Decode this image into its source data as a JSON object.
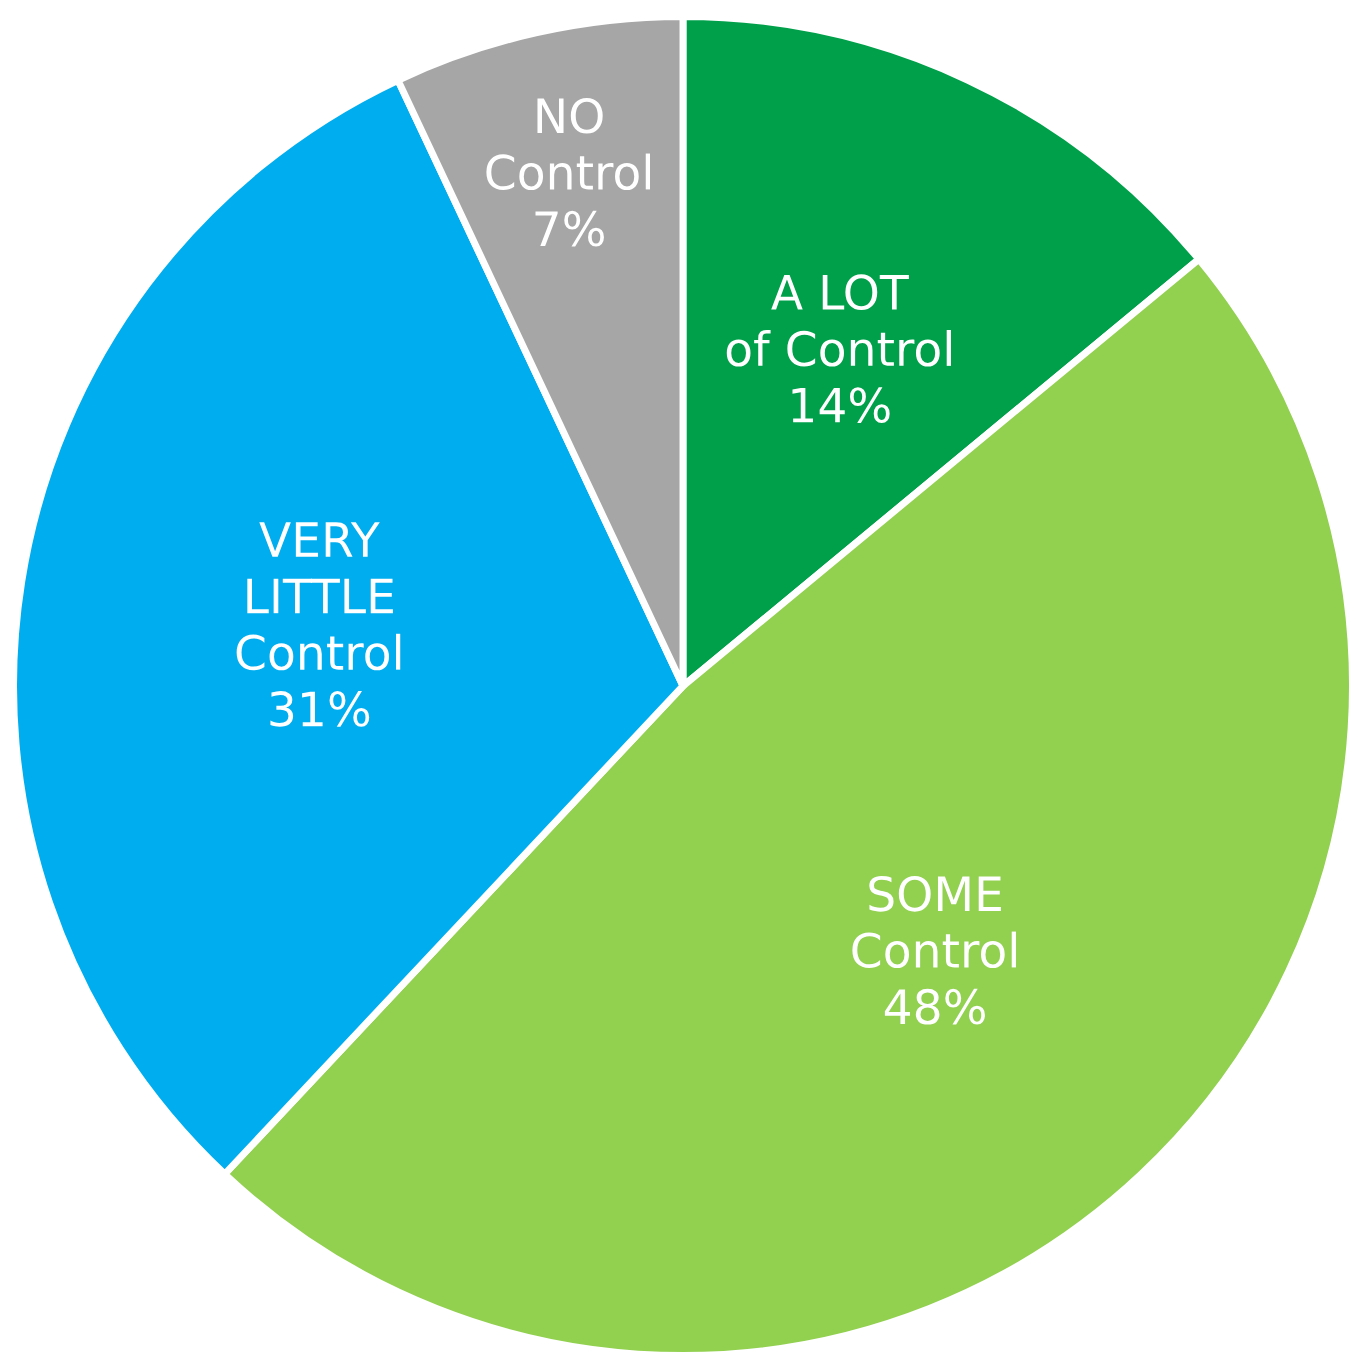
{
  "chart_data": {
    "type": "pie",
    "categories": [
      "A LOT\nof Control",
      "SOME\nControl",
      "VERY\nLITTLE\nControl",
      "NO\nControl"
    ],
    "values": [
      14,
      48,
      31,
      7
    ],
    "colors": [
      "#00a04b",
      "#92d050",
      "#00adef",
      "#a6a6a6"
    ],
    "value_labels": [
      "14%",
      "48%",
      "31%",
      "7%"
    ],
    "legend": false
  }
}
